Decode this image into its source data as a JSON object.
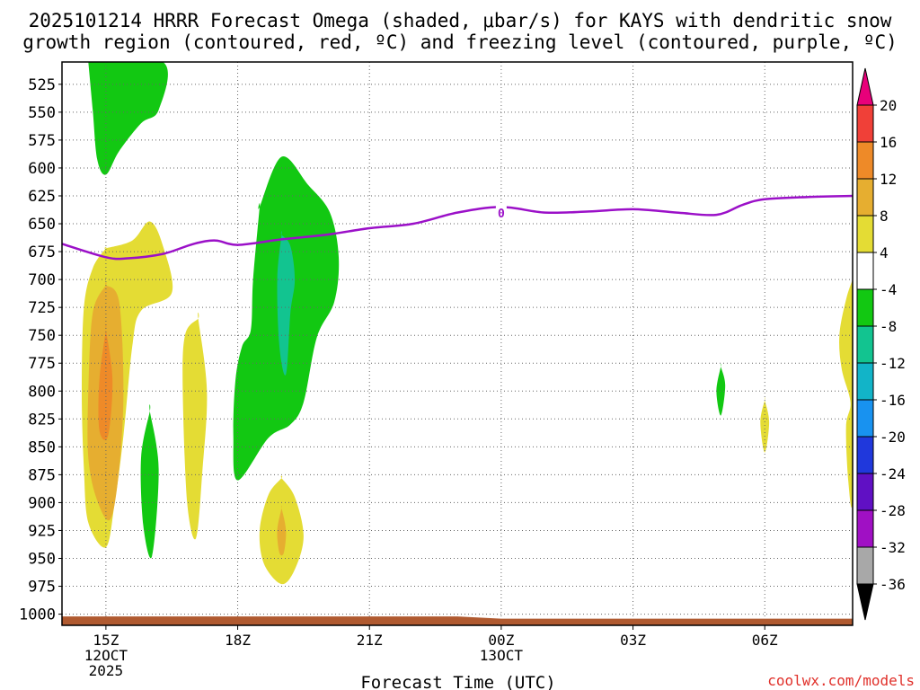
{
  "title": {
    "line1": "2025101214 HRRR Forecast Omega (shaded, μbar/s) for KAYS with dendritic snow",
    "line2": "growth region (contoured, red, ºC) and freezing level (contoured, purple, ºC)"
  },
  "footer": {
    "credit": "coolwx.com/models"
  },
  "chart_data": {
    "type": "heatmap",
    "xlabel": "Forecast Time (UTC)",
    "ylabel": "",
    "x_ticks": [
      {
        "hour": 15,
        "labels": [
          "15Z",
          "12OCT",
          "2025"
        ]
      },
      {
        "hour": 18,
        "labels": [
          "18Z"
        ]
      },
      {
        "hour": 21,
        "labels": [
          "21Z"
        ]
      },
      {
        "hour": 24,
        "labels": [
          "00Z",
          "13OCT"
        ]
      },
      {
        "hour": 27,
        "labels": [
          "03Z"
        ]
      },
      {
        "hour": 30,
        "labels": [
          "06Z"
        ]
      }
    ],
    "xlim": [
      14,
      32
    ],
    "ylim": [
      1010,
      505
    ],
    "y_ticks": [
      525,
      550,
      575,
      600,
      625,
      650,
      675,
      700,
      725,
      750,
      775,
      800,
      825,
      850,
      875,
      900,
      925,
      950,
      975,
      1000
    ],
    "grid": true,
    "colorbar": {
      "labels": [
        "20",
        "16",
        "12",
        "8",
        "4",
        "-4",
        "-8",
        "-12",
        "-16",
        "-20",
        "-24",
        "-28",
        "-32",
        "-36"
      ],
      "bins": [
        {
          "color": "#e8007a"
        },
        {
          "color": "#f04038"
        },
        {
          "color": "#ee8a28"
        },
        {
          "color": "#e6ae30"
        },
        {
          "color": "#e4dc34"
        },
        {
          "color": "#ffffff"
        },
        {
          "color": "#12c812"
        },
        {
          "color": "#12c490"
        },
        {
          "color": "#12b4c8"
        },
        {
          "color": "#1892f0"
        },
        {
          "color": "#2038dc"
        },
        {
          "color": "#6010c4"
        },
        {
          "color": "#a010c4"
        },
        {
          "color": "#a8a8a8"
        },
        {
          "color": "#000000"
        }
      ]
    },
    "freezing_level": {
      "color": "#9b10c8",
      "label": "0",
      "label_at": [
        24.0,
        641
      ],
      "points": [
        [
          14,
          668
        ],
        [
          15,
          680
        ],
        [
          15.5,
          681
        ],
        [
          16.3,
          677
        ],
        [
          17,
          668
        ],
        [
          17.5,
          665
        ],
        [
          18,
          669
        ],
        [
          19,
          664
        ],
        [
          20,
          660
        ],
        [
          21,
          654
        ],
        [
          22,
          650
        ],
        [
          23,
          640
        ],
        [
          24,
          635
        ],
        [
          25,
          640
        ],
        [
          26,
          639
        ],
        [
          27,
          637
        ],
        [
          28,
          640
        ],
        [
          28.9,
          642
        ],
        [
          29.5,
          633
        ],
        [
          30,
          628
        ],
        [
          31,
          626
        ],
        [
          32,
          625
        ]
      ]
    },
    "ground": {
      "color": "#b05a30",
      "points": [
        [
          14,
          1002
        ],
        [
          23,
          1002
        ],
        [
          24,
          1004
        ],
        [
          32,
          1004
        ]
      ]
    },
    "omega_regions": [
      {
        "value": -6,
        "color": "#12c812",
        "points": [
          [
            14.6,
            505
          ],
          [
            16.3,
            505
          ],
          [
            16.2,
            548
          ],
          [
            15.8,
            560
          ],
          [
            15.3,
            585
          ],
          [
            15,
            606
          ],
          [
            14.8,
            592
          ],
          [
            14.7,
            548
          ],
          [
            14.6,
            505
          ]
        ]
      },
      {
        "value": 6,
        "color": "#e4dc34",
        "points": [
          [
            15,
            672
          ],
          [
            15.6,
            665
          ],
          [
            16,
            648
          ],
          [
            16.3,
            670
          ],
          [
            16.5,
            712
          ],
          [
            15.8,
            728
          ],
          [
            15.6,
            760
          ],
          [
            15.4,
            840
          ],
          [
            15.2,
            900
          ],
          [
            15,
            940
          ],
          [
            14.6,
            918
          ],
          [
            14.5,
            870
          ],
          [
            14.45,
            800
          ],
          [
            14.5,
            725
          ],
          [
            14.7,
            690
          ],
          [
            15,
            672
          ]
        ]
      },
      {
        "value": 10,
        "color": "#e6ae30",
        "points": [
          [
            15,
            705
          ],
          [
            15.3,
            720
          ],
          [
            15.4,
            800
          ],
          [
            15.3,
            870
          ],
          [
            15.1,
            915
          ],
          [
            14.8,
            898
          ],
          [
            14.6,
            860
          ],
          [
            14.6,
            800
          ],
          [
            14.7,
            730
          ],
          [
            15,
            705
          ]
        ]
      },
      {
        "value": 14,
        "color": "#ee8a28",
        "points": [
          [
            15,
            745
          ],
          [
            15.15,
            790
          ],
          [
            15.05,
            840
          ],
          [
            14.85,
            835
          ],
          [
            14.85,
            790
          ],
          [
            15,
            745
          ]
        ]
      },
      {
        "value": -6,
        "color": "#12c812",
        "points": [
          [
            16,
            818
          ],
          [
            16.2,
            870
          ],
          [
            16.05,
            948
          ],
          [
            15.85,
            920
          ],
          [
            15.8,
            860
          ],
          [
            16,
            818
          ]
        ]
      },
      {
        "value": 6,
        "color": "#e4dc34",
        "points": [
          [
            17.1,
            735
          ],
          [
            17.3,
            800
          ],
          [
            17.2,
            870
          ],
          [
            17.05,
            932
          ],
          [
            16.85,
            900
          ],
          [
            16.75,
            800
          ],
          [
            16.8,
            750
          ],
          [
            17.1,
            735
          ]
        ]
      },
      {
        "value": -6,
        "color": "#12c812",
        "points": [
          [
            18.5,
            635
          ],
          [
            19,
            590
          ],
          [
            19.6,
            615
          ],
          [
            20.1,
            640
          ],
          [
            20.3,
            680
          ],
          [
            20.2,
            720
          ],
          [
            19.8,
            752
          ],
          [
            19.5,
            810
          ],
          [
            19.2,
            830
          ],
          [
            18.7,
            842
          ],
          [
            18,
            880
          ],
          [
            17.9,
            840
          ],
          [
            17.95,
            790
          ],
          [
            18.1,
            760
          ],
          [
            18.3,
            745
          ],
          [
            18.35,
            700
          ],
          [
            18.5,
            635
          ]
        ]
      },
      {
        "value": -10,
        "color": "#12c490",
        "points": [
          [
            19,
            660
          ],
          [
            19.2,
            670
          ],
          [
            19.3,
            700
          ],
          [
            19.2,
            730
          ],
          [
            19.1,
            785
          ],
          [
            18.95,
            760
          ],
          [
            18.9,
            700
          ],
          [
            19,
            660
          ]
        ]
      },
      {
        "value": 6,
        "color": "#e4dc34",
        "points": [
          [
            19,
            878
          ],
          [
            19.3,
            895
          ],
          [
            19.5,
            930
          ],
          [
            19.3,
            960
          ],
          [
            19,
            973
          ],
          [
            18.6,
            955
          ],
          [
            18.5,
            925
          ],
          [
            18.7,
            893
          ],
          [
            19,
            878
          ]
        ]
      },
      {
        "value": 10,
        "color": "#e6ae30",
        "points": [
          [
            19,
            905
          ],
          [
            19.1,
            925
          ],
          [
            19.05,
            945
          ],
          [
            18.95,
            945
          ],
          [
            18.9,
            925
          ],
          [
            19,
            905
          ]
        ]
      },
      {
        "value": -6,
        "color": "#12c812",
        "points": [
          [
            29,
            778
          ],
          [
            29.1,
            795
          ],
          [
            29,
            822
          ],
          [
            28.9,
            800
          ],
          [
            29,
            778
          ]
        ]
      },
      {
        "value": 6,
        "color": "#e4dc34",
        "points": [
          [
            30,
            808
          ],
          [
            30.1,
            828
          ],
          [
            30,
            855
          ],
          [
            29.9,
            828
          ],
          [
            30,
            808
          ]
        ]
      },
      {
        "value": 6,
        "color": "#e4dc34",
        "points": [
          [
            32,
            700
          ],
          [
            32,
            892
          ],
          [
            31.9,
            880
          ],
          [
            31.85,
            832
          ],
          [
            31.95,
            810
          ],
          [
            31.75,
            780
          ],
          [
            31.7,
            750
          ],
          [
            31.85,
            718
          ],
          [
            32,
            700
          ]
        ]
      }
    ]
  }
}
